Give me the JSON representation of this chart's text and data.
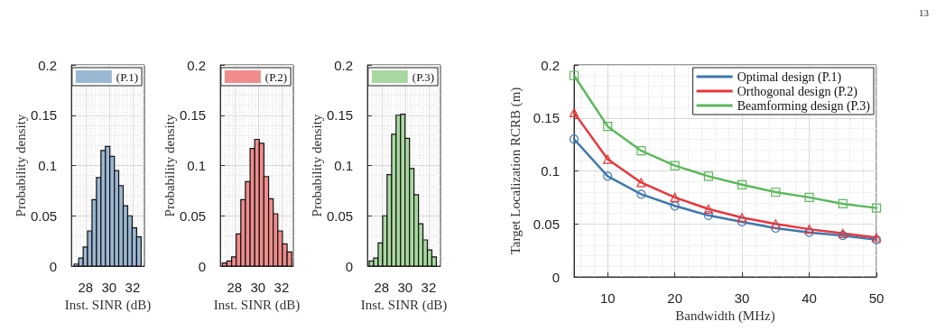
{
  "chart_data": [
    {
      "type": "histogram",
      "xlabel": "Inst. SINR (dB)",
      "ylabel": "Probability density",
      "xlim": [
        26.8,
        33
      ],
      "xticks": [
        28,
        30,
        32
      ],
      "ylim": [
        0,
        0.2
      ],
      "yticks": [
        0,
        0.05,
        0.1,
        0.15,
        0.2
      ],
      "grid": true,
      "legend": "top",
      "bins": [
        27.04,
        27.42,
        27.8,
        28.17,
        28.55,
        28.93,
        29.31,
        29.69,
        30.07,
        30.45,
        30.82,
        31.2,
        31.58,
        31.96,
        32.34,
        32.72
      ],
      "series": [
        {
          "name": "(P.1)",
          "color": "#9bb8d3",
          "values": [
            0.002,
            0.008,
            0.019,
            0.035,
            0.066,
            0.088,
            0.115,
            0.119,
            0.109,
            0.095,
            0.08,
            0.06,
            0.05,
            0.038,
            0.029
          ]
        }
      ]
    },
    {
      "type": "histogram",
      "xlabel": "Inst. SINR (dB)",
      "ylabel": "Probability density",
      "xlim": [
        26.8,
        33
      ],
      "xticks": [
        28,
        30,
        32
      ],
      "ylim": [
        0,
        0.2
      ],
      "yticks": [
        0,
        0.05,
        0.1,
        0.15,
        0.2
      ],
      "grid": true,
      "legend": "top",
      "bins": [
        26.97,
        27.36,
        27.76,
        28.15,
        28.54,
        28.93,
        29.33,
        29.72,
        30.11,
        30.5,
        30.9,
        31.29,
        31.68,
        32.07,
        32.47,
        32.86
      ],
      "series": [
        {
          "name": "(P.2)",
          "color": "#f08c8c",
          "values": [
            0.003,
            0.005,
            0.009,
            0.032,
            0.066,
            0.084,
            0.117,
            0.126,
            0.122,
            0.089,
            0.067,
            0.052,
            0.035,
            0.022,
            0.014
          ]
        }
      ]
    },
    {
      "type": "histogram",
      "xlabel": "Inst. SINR (dB)",
      "ylabel": "Probability density",
      "xlim": [
        26.8,
        33
      ],
      "xticks": [
        28,
        30,
        32
      ],
      "ylim": [
        0,
        0.2
      ],
      "yticks": [
        0,
        0.05,
        0.1,
        0.15,
        0.2
      ],
      "grid": true,
      "legend": "top",
      "bins": [
        26.95,
        27.33,
        27.71,
        28.09,
        28.47,
        28.85,
        29.23,
        29.61,
        29.99,
        30.37,
        30.75,
        31.13,
        31.51,
        31.89,
        32.27,
        32.65
      ],
      "series": [
        {
          "name": "(P.3)",
          "color": "#a8d8a0",
          "values": [
            0.005,
            0.008,
            0.023,
            0.05,
            0.091,
            0.131,
            0.15,
            0.151,
            0.127,
            0.097,
            0.071,
            0.042,
            0.026,
            0.016,
            0.009
          ]
        }
      ]
    },
    {
      "type": "line",
      "xlabel": "Bandwidth (MHz)",
      "ylabel": "Target Localization RCRB (m)",
      "xlim": [
        5,
        50
      ],
      "xticks": [
        10,
        20,
        30,
        40,
        50
      ],
      "ylim": [
        0,
        0.2
      ],
      "yticks": [
        0,
        0.05,
        0.1,
        0.15,
        0.2
      ],
      "grid": true,
      "legend": "top right",
      "annotations": [
        "13"
      ],
      "x": [
        5,
        10,
        15,
        20,
        25,
        30,
        35,
        40,
        45,
        50
      ],
      "series": [
        {
          "name": "Optimal design (P.1)",
          "color": "#3f78b0",
          "marker": "circle",
          "values": [
            0.13,
            0.095,
            0.078,
            0.067,
            0.058,
            0.052,
            0.046,
            0.042,
            0.039,
            0.035
          ]
        },
        {
          "name": "Orthogonal design (P.2)",
          "color": "#e8363a",
          "marker": "triangle",
          "values": [
            0.155,
            0.111,
            0.089,
            0.075,
            0.064,
            0.056,
            0.05,
            0.045,
            0.041,
            0.037
          ]
        },
        {
          "name": "Beamforming design (P.3)",
          "color": "#5cb85c",
          "marker": "square",
          "values": [
            0.19,
            0.142,
            0.119,
            0.105,
            0.095,
            0.087,
            0.08,
            0.075,
            0.069,
            0.065
          ]
        }
      ]
    }
  ]
}
